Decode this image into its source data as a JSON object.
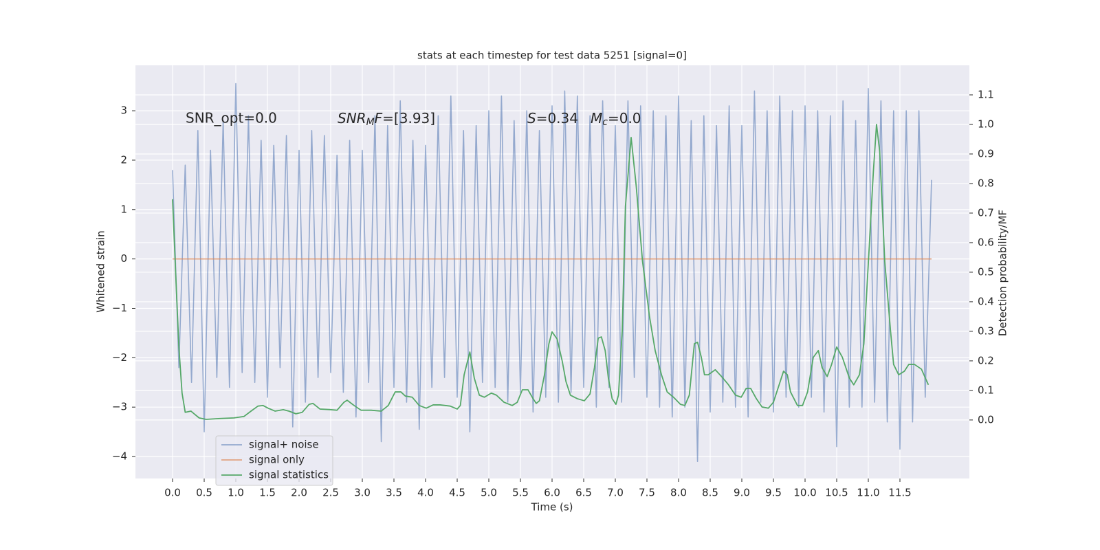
{
  "chart_data": {
    "type": "line",
    "title": "stats at each timestep for test data 5251 [signal=0]",
    "xlabel": "Time (s)",
    "ylabel": "Whitened strain",
    "y2label": "Detection probability/MF",
    "grid": true,
    "legend": "lower left",
    "annotations": [
      "SNR_opt=0.0",
      [
        "SNR",
        "M",
        "F",
        "=[3.93]"
      ],
      [
        "S",
        "=0.34"
      ],
      [
        "M",
        "c",
        "=0.0"
      ]
    ],
    "xlim": [
      -0.587,
      12.598
    ],
    "ylim": [
      -4.445,
      3.92
    ],
    "y2lim": [
      -0.198,
      1.2
    ],
    "xticks": [
      {
        "value": 0,
        "label": "0.0"
      },
      0.5,
      {
        "value": 1,
        "label": "1.0"
      },
      1.5,
      {
        "value": 2,
        "label": "2.0"
      },
      2.5,
      {
        "value": 3,
        "label": "3.0"
      },
      3.5,
      {
        "value": 4,
        "label": "4.0"
      },
      4.5,
      {
        "value": 5,
        "label": "5.0"
      },
      5.5,
      {
        "value": 6,
        "label": "6.0"
      },
      6.5,
      {
        "value": 7,
        "label": "7.0"
      },
      7.5,
      {
        "value": 8,
        "label": "8.0"
      },
      8.5,
      {
        "value": 9,
        "label": "9.0"
      },
      9.5,
      {
        "value": 10,
        "label": "10.0"
      },
      10.5,
      {
        "value": 11,
        "label": "11.0"
      },
      11.5
    ],
    "yticks": [
      {
        "value": -4,
        "label": "−4"
      },
      {
        "value": -3,
        "label": "−3"
      },
      {
        "value": -2,
        "label": "−2"
      },
      {
        "value": -1,
        "label": "−1"
      },
      0,
      1,
      2,
      3
    ],
    "y2ticks": [
      {
        "value": 0,
        "label": "0.0"
      },
      0.1,
      0.2,
      0.3,
      0.4,
      0.5,
      0.6,
      0.7,
      0.8,
      0.9,
      {
        "value": 1,
        "label": "1.0"
      },
      1.1
    ],
    "series": [
      {
        "name": "signal+ noise",
        "color": "#4c72b0",
        "x": [
          0,
          0.1,
          0.2,
          0.3,
          0.4,
          0.5,
          0.6,
          0.7,
          0.8,
          0.9,
          1,
          1.1,
          1.2,
          1.3,
          1.4,
          1.5,
          1.6,
          1.7,
          1.8,
          1.9,
          2,
          2.1,
          2.2,
          2.3,
          2.4,
          2.5,
          2.6,
          2.7,
          2.8,
          2.9,
          3,
          3.1,
          3.2,
          3.3,
          3.4,
          3.5,
          3.6,
          3.7,
          3.8,
          3.9,
          4,
          4.1,
          4.2,
          4.3,
          4.4,
          4.5,
          4.6,
          4.7,
          4.8,
          4.9,
          5,
          5.1,
          5.2,
          5.3,
          5.4,
          5.5,
          5.6,
          5.7,
          5.8,
          5.9,
          6,
          6.1,
          6.2,
          6.3,
          6.4,
          6.5,
          6.6,
          6.7,
          6.8,
          6.9,
          7,
          7.1,
          7.2,
          7.3,
          7.4,
          7.5,
          7.6,
          7.7,
          7.8,
          7.9,
          8,
          8.1,
          8.2,
          8.3,
          8.4,
          8.5,
          8.6,
          8.7,
          8.8,
          8.9,
          9,
          9.1,
          9.2,
          9.3,
          9.4,
          9.5,
          9.6,
          9.7,
          9.8,
          9.9,
          10,
          10.1,
          10.2,
          10.3,
          10.4,
          10.5,
          10.6,
          10.7,
          10.8,
          10.9,
          11,
          11.1,
          11.2,
          11.3,
          11.4,
          11.5,
          11.6,
          11.7,
          11.8,
          11.9,
          12
        ],
        "values": [
          1.8,
          -2.2,
          1.9,
          -2.5,
          2.6,
          -3.5,
          2.2,
          -2.4,
          2.8,
          -2.6,
          3.55,
          -2.3,
          2.9,
          -2.5,
          2.4,
          -2.8,
          2.3,
          -2.2,
          2.5,
          -3.4,
          2.2,
          -2.9,
          2.6,
          -2.4,
          2.5,
          -2.3,
          2.1,
          -2.7,
          2.4,
          -3.2,
          2.2,
          -2.5,
          2.9,
          -3.7,
          2.7,
          -2.6,
          3.2,
          -2.9,
          2.4,
          -3.45,
          2.3,
          -2.6,
          2.9,
          -2.4,
          3.3,
          -2.8,
          2.6,
          -3.5,
          2.7,
          -2.5,
          3.0,
          -2.6,
          3.3,
          -2.9,
          2.8,
          -2.7,
          3.0,
          -3.1,
          2.6,
          -2.8,
          3.1,
          -2.9,
          3.4,
          -2.7,
          3.3,
          -2.6,
          2.9,
          -3.0,
          3.2,
          -2.6,
          2.7,
          -2.9,
          3.2,
          -2.4,
          3.1,
          -2.8,
          3.0,
          -3.0,
          2.9,
          -3.2,
          3.3,
          -3.0,
          2.8,
          -4.1,
          2.9,
          -3.1,
          2.7,
          -2.9,
          3.1,
          -3.0,
          2.7,
          -3.2,
          3.4,
          -2.9,
          3.0,
          -3.1,
          3.3,
          -2.8,
          3.0,
          -3.0,
          3.1,
          -2.8,
          3.0,
          -3.1,
          2.9,
          -3.8,
          3.2,
          -3.0,
          2.8,
          -3.0,
          3.45,
          -2.9,
          3.2,
          -3.3,
          3.0,
          -3.85,
          3.0,
          -3.3,
          3.0,
          -2.8,
          1.6
        ]
      },
      {
        "name": "signal only",
        "color": "#dd8452",
        "x": [
          0,
          12
        ],
        "values": [
          0,
          0
        ]
      },
      {
        "name": "signal statistics",
        "color": "#55a868",
        "axis": "y2",
        "x": [
          0,
          0.05,
          0.1,
          0.15,
          0.2,
          0.29,
          0.34,
          0.42,
          0.53,
          0.75,
          0.97,
          1.13,
          1.24,
          1.35,
          1.43,
          1.51,
          1.62,
          1.75,
          1.84,
          1.95,
          2.05,
          2.16,
          2.22,
          2.33,
          2.49,
          2.6,
          2.71,
          2.76,
          2.87,
          2.98,
          3.14,
          3.3,
          3.41,
          3.52,
          3.61,
          3.68,
          3.79,
          3.9,
          4.01,
          4.12,
          4.23,
          4.39,
          4.5,
          4.55,
          4.61,
          4.7,
          4.77,
          4.85,
          4.93,
          5.04,
          5.12,
          5.24,
          5.37,
          5.45,
          5.53,
          5.62,
          5.7,
          5.75,
          5.8,
          5.88,
          5.95,
          6.0,
          6.08,
          6.16,
          6.22,
          6.29,
          6.4,
          6.51,
          6.6,
          6.67,
          6.73,
          6.78,
          6.84,
          6.89,
          6.95,
          7.01,
          7.05,
          7.11,
          7.16,
          7.25,
          7.33,
          7.43,
          7.54,
          7.63,
          7.73,
          7.82,
          7.92,
          8.03,
          8.1,
          8.17,
          8.25,
          8.3,
          8.36,
          8.41,
          8.47,
          8.58,
          8.68,
          8.79,
          8.9,
          8.99,
          9.07,
          9.14,
          9.23,
          9.32,
          9.42,
          9.5,
          9.59,
          9.66,
          9.72,
          9.77,
          9.88,
          9.96,
          10.04,
          10.13,
          10.21,
          10.27,
          10.35,
          10.42,
          10.5,
          10.59,
          10.7,
          10.77,
          10.86,
          10.93,
          11.02,
          11.08,
          11.13,
          11.18,
          11.26,
          11.35,
          11.4,
          11.48,
          11.57,
          11.64,
          11.73,
          11.84,
          11.95
        ],
        "values": [
          0.747,
          0.491,
          0.247,
          0.091,
          0.026,
          0.03,
          0.021,
          0.007,
          0.002,
          0.005,
          0.007,
          0.012,
          0.03,
          0.047,
          0.049,
          0.04,
          0.03,
          0.035,
          0.03,
          0.021,
          0.026,
          0.053,
          0.056,
          0.037,
          0.035,
          0.033,
          0.06,
          0.067,
          0.049,
          0.033,
          0.033,
          0.03,
          0.049,
          0.095,
          0.095,
          0.081,
          0.077,
          0.049,
          0.04,
          0.051,
          0.051,
          0.047,
          0.037,
          0.049,
          0.153,
          0.23,
          0.142,
          0.084,
          0.077,
          0.091,
          0.084,
          0.06,
          0.049,
          0.06,
          0.102,
          0.102,
          0.072,
          0.056,
          0.065,
          0.153,
          0.258,
          0.298,
          0.274,
          0.2,
          0.13,
          0.084,
          0.072,
          0.065,
          0.088,
          0.177,
          0.277,
          0.281,
          0.235,
          0.142,
          0.072,
          0.053,
          0.084,
          0.305,
          0.723,
          0.956,
          0.793,
          0.537,
          0.351,
          0.235,
          0.153,
          0.095,
          0.077,
          0.053,
          0.049,
          0.084,
          0.258,
          0.263,
          0.212,
          0.153,
          0.153,
          0.17,
          0.147,
          0.119,
          0.084,
          0.077,
          0.107,
          0.107,
          0.072,
          0.044,
          0.04,
          0.06,
          0.119,
          0.165,
          0.153,
          0.095,
          0.049,
          0.049,
          0.095,
          0.212,
          0.235,
          0.177,
          0.147,
          0.188,
          0.247,
          0.212,
          0.142,
          0.119,
          0.153,
          0.258,
          0.607,
          0.84,
          1.0,
          0.909,
          0.537,
          0.305,
          0.188,
          0.153,
          0.165,
          0.188,
          0.188,
          0.172,
          0.119
        ]
      }
    ]
  }
}
